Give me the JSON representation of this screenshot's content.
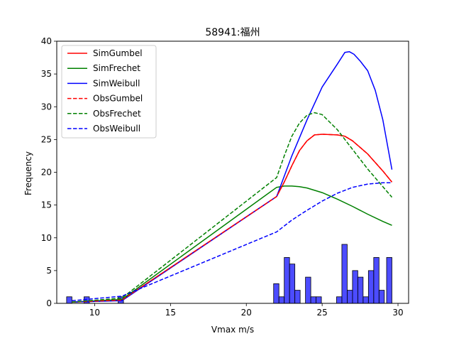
{
  "chart_data": {
    "type": "line",
    "title": "58941:福州",
    "xlabel": "Vmax m/s",
    "ylabel": "Frequency",
    "xlim": [
      7.5,
      30.7
    ],
    "ylim": [
      0,
      40
    ],
    "x_ticks": [
      10,
      15,
      20,
      25,
      30
    ],
    "y_ticks": [
      0,
      5,
      10,
      15,
      20,
      25,
      30,
      35,
      40
    ],
    "grid": false,
    "legend_position": "top-left",
    "series": [
      {
        "name": "SimGumbel",
        "color": "#ff0000",
        "style": "solid",
        "x": [
          8.5,
          11.8,
          22,
          22.5,
          23,
          23.5,
          24,
          24.5,
          25,
          26,
          26.5,
          27,
          28,
          29,
          29.6
        ],
        "y": [
          0.2,
          0.5,
          16.3,
          18.5,
          21,
          23.3,
          24.8,
          25.7,
          25.8,
          25.7,
          25.5,
          24.8,
          22.8,
          20.2,
          18.5
        ]
      },
      {
        "name": "SimFrechet",
        "color": "#008000",
        "style": "solid",
        "x": [
          8.5,
          11.8,
          22,
          22.5,
          23,
          23.5,
          24,
          25,
          26,
          27,
          28,
          29,
          29.6
        ],
        "y": [
          0.2,
          0.6,
          17.7,
          17.9,
          17.9,
          17.8,
          17.6,
          16.9,
          15.9,
          14.8,
          13.6,
          12.5,
          11.9
        ]
      },
      {
        "name": "SimWeibull",
        "color": "#0000ff",
        "style": "solid",
        "x": [
          8.5,
          11.8,
          22,
          23,
          24,
          25,
          26,
          26.5,
          26.8,
          27.1,
          27.5,
          28,
          28.5,
          29,
          29.6
        ],
        "y": [
          0.2,
          0.4,
          16.3,
          22.5,
          28,
          33,
          36.5,
          38.3,
          38.4,
          38,
          37,
          35.5,
          32.5,
          28,
          20.4
        ]
      },
      {
        "name": "ObsGumbel",
        "color": "#ff0000",
        "style": "dashed",
        "x": [
          8.5,
          11.8,
          22,
          22.5,
          23,
          23.5,
          24,
          24.5,
          25,
          26,
          26.5,
          27,
          28,
          29,
          29.6
        ],
        "y": [
          0.2,
          0.5,
          16.3,
          18.5,
          21,
          23.3,
          24.8,
          25.7,
          25.8,
          25.7,
          25.5,
          24.8,
          22.8,
          20.2,
          18.5
        ]
      },
      {
        "name": "ObsFrechet",
        "color": "#008000",
        "style": "dashed",
        "x": [
          8.5,
          11.8,
          22,
          22.5,
          23,
          23.5,
          24,
          24.5,
          25,
          26,
          27,
          28,
          29,
          29.6
        ],
        "y": [
          0.2,
          0.8,
          19.2,
          22.5,
          25.5,
          27.5,
          28.7,
          29.1,
          28.8,
          26.5,
          23.5,
          20.5,
          17.8,
          16.2
        ]
      },
      {
        "name": "ObsWeibull",
        "color": "#0000ff",
        "style": "dashed",
        "x": [
          8.5,
          11.8,
          22,
          23,
          24,
          25,
          26,
          27,
          28,
          29,
          29.6
        ],
        "y": [
          0.4,
          1.1,
          10.9,
          12.7,
          14.2,
          15.6,
          16.8,
          17.7,
          18.2,
          18.4,
          18.4
        ]
      }
    ],
    "histogram": {
      "color": "#0000ff",
      "bins": [
        {
          "x0": 8.15,
          "x1": 8.5,
          "count": 1
        },
        {
          "x0": 9.3,
          "x1": 9.65,
          "count": 1
        },
        {
          "x0": 11.55,
          "x1": 11.9,
          "count": 1
        },
        {
          "x0": 21.8,
          "x1": 22.15,
          "count": 3
        },
        {
          "x0": 22.15,
          "x1": 22.5,
          "count": 1
        },
        {
          "x0": 22.5,
          "x1": 22.85,
          "count": 7
        },
        {
          "x0": 22.85,
          "x1": 23.2,
          "count": 6
        },
        {
          "x0": 23.2,
          "x1": 23.55,
          "count": 2
        },
        {
          "x0": 23.9,
          "x1": 24.25,
          "count": 4
        },
        {
          "x0": 24.25,
          "x1": 24.6,
          "count": 1
        },
        {
          "x0": 24.6,
          "x1": 24.95,
          "count": 1
        },
        {
          "x0": 25.95,
          "x1": 26.3,
          "count": 1
        },
        {
          "x0": 26.3,
          "x1": 26.65,
          "count": 9
        },
        {
          "x0": 26.65,
          "x1": 27.0,
          "count": 2
        },
        {
          "x0": 27.0,
          "x1": 27.35,
          "count": 5
        },
        {
          "x0": 27.35,
          "x1": 27.7,
          "count": 4
        },
        {
          "x0": 27.7,
          "x1": 28.05,
          "count": 1
        },
        {
          "x0": 28.05,
          "x1": 28.4,
          "count": 5
        },
        {
          "x0": 28.4,
          "x1": 28.75,
          "count": 7
        },
        {
          "x0": 28.75,
          "x1": 29.1,
          "count": 2
        },
        {
          "x0": 29.25,
          "x1": 29.6,
          "count": 7
        }
      ]
    }
  }
}
